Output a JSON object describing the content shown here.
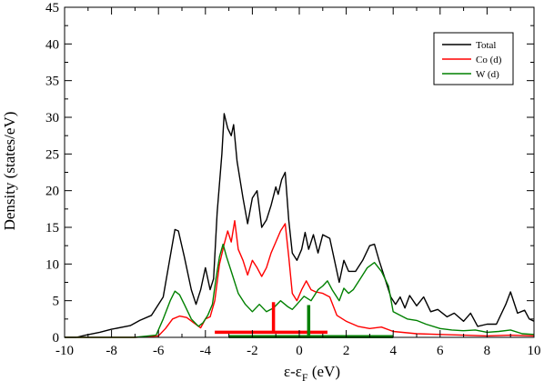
{
  "chart_data": {
    "type": "line",
    "xlabel": {
      "main": "ε-ε",
      "sub": "F",
      "unit": " (eV)"
    },
    "ylabel": "Density (states/eV)",
    "xlim": [
      -10,
      10
    ],
    "ylim": [
      0,
      45
    ],
    "xticks": [
      -10,
      -8,
      -6,
      -4,
      -2,
      0,
      2,
      4,
      6,
      8,
      10
    ],
    "yticks": [
      0,
      5,
      10,
      15,
      20,
      25,
      30,
      35,
      40,
      45
    ],
    "grid": false,
    "legend_position": "top-right",
    "series": [
      {
        "name": "Total",
        "color": "#000000",
        "points": [
          [
            -10,
            0
          ],
          [
            -9.5,
            0
          ],
          [
            -9.1,
            0.3
          ],
          [
            -8.5,
            0.7
          ],
          [
            -8,
            1.1
          ],
          [
            -7.2,
            1.6
          ],
          [
            -6.8,
            2.3
          ],
          [
            -6.3,
            3.0
          ],
          [
            -5.8,
            5.5
          ],
          [
            -5.5,
            11
          ],
          [
            -5.3,
            14.7
          ],
          [
            -5.15,
            14.5
          ],
          [
            -4.9,
            11
          ],
          [
            -4.6,
            6.5
          ],
          [
            -4.4,
            4.5
          ],
          [
            -4.2,
            6.5
          ],
          [
            -4.0,
            9.5
          ],
          [
            -3.8,
            6.5
          ],
          [
            -3.65,
            8
          ],
          [
            -3.5,
            17
          ],
          [
            -3.3,
            25
          ],
          [
            -3.2,
            30.5
          ],
          [
            -3.05,
            28.5
          ],
          [
            -2.9,
            27.5
          ],
          [
            -2.8,
            29
          ],
          [
            -2.65,
            24
          ],
          [
            -2.4,
            19
          ],
          [
            -2.2,
            15.5
          ],
          [
            -2.0,
            19
          ],
          [
            -1.8,
            20
          ],
          [
            -1.6,
            15
          ],
          [
            -1.4,
            16
          ],
          [
            -1.2,
            18
          ],
          [
            -1.0,
            20.5
          ],
          [
            -0.9,
            19.5
          ],
          [
            -0.75,
            21.5
          ],
          [
            -0.6,
            22.5
          ],
          [
            -0.45,
            16
          ],
          [
            -0.3,
            11.5
          ],
          [
            -0.1,
            10.5
          ],
          [
            0.1,
            12
          ],
          [
            0.25,
            14.3
          ],
          [
            0.4,
            12
          ],
          [
            0.6,
            14
          ],
          [
            0.8,
            11.5
          ],
          [
            1.0,
            14
          ],
          [
            1.3,
            13.5
          ],
          [
            1.5,
            10.5
          ],
          [
            1.7,
            7.5
          ],
          [
            1.9,
            10.5
          ],
          [
            2.1,
            9
          ],
          [
            2.4,
            9
          ],
          [
            2.7,
            10.5
          ],
          [
            3.0,
            12.5
          ],
          [
            3.2,
            12.7
          ],
          [
            3.4,
            10.5
          ],
          [
            3.7,
            7.5
          ],
          [
            3.9,
            5.5
          ],
          [
            4.1,
            4.5
          ],
          [
            4.3,
            5.5
          ],
          [
            4.5,
            4
          ],
          [
            4.7,
            5.7
          ],
          [
            5.0,
            4.3
          ],
          [
            5.3,
            5.5
          ],
          [
            5.6,
            3.5
          ],
          [
            5.9,
            3.8
          ],
          [
            6.3,
            2.8
          ],
          [
            6.6,
            3.3
          ],
          [
            7.0,
            2.2
          ],
          [
            7.3,
            3.3
          ],
          [
            7.6,
            1.5
          ],
          [
            8.0,
            1.8
          ],
          [
            8.4,
            1.8
          ],
          [
            8.8,
            4.5
          ],
          [
            9.0,
            6.2
          ],
          [
            9.3,
            3.3
          ],
          [
            9.6,
            3.7
          ],
          [
            9.8,
            2.5
          ],
          [
            10,
            2.2
          ]
        ]
      },
      {
        "name": "Co (d)",
        "color": "#ff0000",
        "points": [
          [
            -10,
            0
          ],
          [
            -7,
            0
          ],
          [
            -6,
            0.2
          ],
          [
            -5.7,
            1.2
          ],
          [
            -5.4,
            2.5
          ],
          [
            -5.1,
            2.9
          ],
          [
            -4.8,
            2.7
          ],
          [
            -4.5,
            2
          ],
          [
            -4.2,
            1.3
          ],
          [
            -4.0,
            2.5
          ],
          [
            -3.8,
            2.8
          ],
          [
            -3.6,
            5
          ],
          [
            -3.4,
            10
          ],
          [
            -3.2,
            12.7
          ],
          [
            -3.05,
            14.5
          ],
          [
            -2.9,
            13
          ],
          [
            -2.75,
            15.9
          ],
          [
            -2.6,
            12
          ],
          [
            -2.4,
            10.5
          ],
          [
            -2.2,
            8.5
          ],
          [
            -2.0,
            10.5
          ],
          [
            -1.8,
            9.5
          ],
          [
            -1.6,
            8.3
          ],
          [
            -1.4,
            9.5
          ],
          [
            -1.2,
            11.5
          ],
          [
            -1.0,
            13
          ],
          [
            -0.8,
            14.5
          ],
          [
            -0.6,
            15.5
          ],
          [
            -0.45,
            11
          ],
          [
            -0.3,
            6
          ],
          [
            -0.1,
            5
          ],
          [
            0.1,
            6.5
          ],
          [
            0.3,
            7.7
          ],
          [
            0.5,
            6.5
          ],
          [
            0.7,
            6.2
          ],
          [
            1.0,
            6
          ],
          [
            1.3,
            5.5
          ],
          [
            1.6,
            3
          ],
          [
            2.0,
            2.2
          ],
          [
            2.5,
            1.5
          ],
          [
            3.0,
            1.2
          ],
          [
            3.5,
            1.4
          ],
          [
            4.0,
            0.8
          ],
          [
            5,
            0.5
          ],
          [
            6,
            0.4
          ],
          [
            7,
            0.3
          ],
          [
            8,
            0.2
          ],
          [
            9,
            0.3
          ],
          [
            10,
            0.2
          ]
        ]
      },
      {
        "name": "W (d)",
        "color": "#008000",
        "points": [
          [
            -10,
            0
          ],
          [
            -7,
            0
          ],
          [
            -6.1,
            0.3
          ],
          [
            -5.8,
            2.5
          ],
          [
            -5.5,
            5
          ],
          [
            -5.3,
            6.3
          ],
          [
            -5.1,
            5.8
          ],
          [
            -4.9,
            4.5
          ],
          [
            -4.6,
            2.5
          ],
          [
            -4.3,
            1.5
          ],
          [
            -4.1,
            2
          ],
          [
            -3.9,
            3
          ],
          [
            -3.7,
            4.5
          ],
          [
            -3.55,
            8
          ],
          [
            -3.4,
            11
          ],
          [
            -3.25,
            12.7
          ],
          [
            -3.1,
            11
          ],
          [
            -2.9,
            9
          ],
          [
            -2.6,
            6
          ],
          [
            -2.3,
            4.5
          ],
          [
            -2.0,
            3.5
          ],
          [
            -1.7,
            4.5
          ],
          [
            -1.4,
            3.5
          ],
          [
            -1.1,
            4
          ],
          [
            -0.8,
            5
          ],
          [
            -0.5,
            4.2
          ],
          [
            -0.3,
            3.8
          ],
          [
            -0.1,
            4.5
          ],
          [
            0.2,
            5.6
          ],
          [
            0.5,
            5
          ],
          [
            0.8,
            6.5
          ],
          [
            1.0,
            7
          ],
          [
            1.2,
            7.7
          ],
          [
            1.4,
            6.5
          ],
          [
            1.7,
            5
          ],
          [
            1.9,
            6.7
          ],
          [
            2.1,
            6
          ],
          [
            2.3,
            6.5
          ],
          [
            2.6,
            8
          ],
          [
            2.9,
            9.5
          ],
          [
            3.2,
            10.2
          ],
          [
            3.5,
            9
          ],
          [
            3.8,
            7
          ],
          [
            4.0,
            3.5
          ],
          [
            4.3,
            3
          ],
          [
            4.6,
            2.5
          ],
          [
            5.0,
            2.3
          ],
          [
            5.4,
            1.8
          ],
          [
            6.0,
            1.2
          ],
          [
            6.5,
            1
          ],
          [
            7.0,
            0.9
          ],
          [
            7.5,
            1
          ],
          [
            8.0,
            0.7
          ],
          [
            8.5,
            0.8
          ],
          [
            9.0,
            1
          ],
          [
            9.5,
            0.5
          ],
          [
            10,
            0.4
          ]
        ]
      }
    ],
    "markers": [
      {
        "color": "#ff0000",
        "bar": [
          -3.6,
          1.2
        ],
        "bar_y": 0.7,
        "tick_x": -1.1,
        "tick_top": 4.8
      },
      {
        "color": "#008000",
        "bar": [
          -3.0,
          4.0
        ],
        "bar_y": 0.1,
        "tick_x": 0.4,
        "tick_top": 4.4
      }
    ]
  }
}
